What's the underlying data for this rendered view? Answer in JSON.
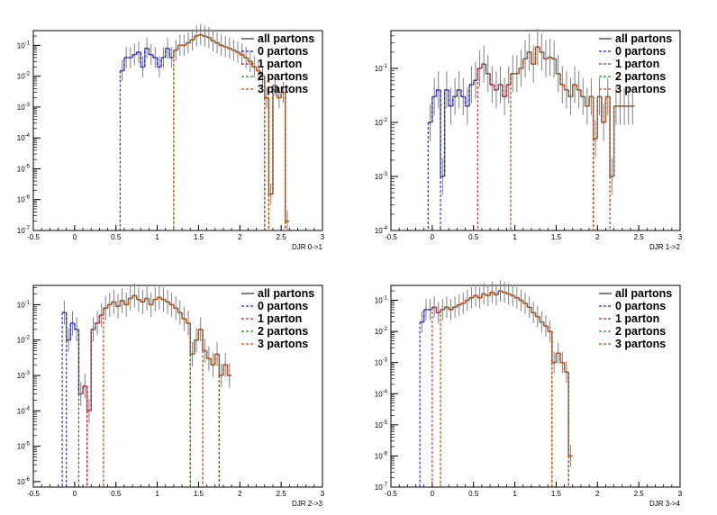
{
  "figure": {
    "background": "#ffffff",
    "frame_color": "#000000",
    "legend_entries": [
      "all partons",
      "0 partons",
      "1 parton",
      "2 partons",
      "3 partons"
    ]
  },
  "chart_data": [
    {
      "type": "line",
      "log_y": true,
      "xlabel": "DJR 0->1",
      "xlim": [
        -0.5,
        3.0
      ],
      "ylim": [
        1e-07,
        0.3
      ],
      "x_ticks": [
        "-0.5",
        "0",
        "0.5",
        "1",
        "1.5",
        "2",
        "2.5",
        "3"
      ],
      "x_tick_values": [
        -0.5,
        0,
        0.5,
        1,
        1.5,
        2,
        2.5,
        3
      ],
      "y_ticks": [
        "10^-7",
        "10^-6",
        "10^-5",
        "10^-4",
        "10^-3",
        "10^-2",
        "10^-1"
      ],
      "y_tick_values": [
        1e-07,
        1e-06,
        1e-05,
        0.0001,
        0.001,
        0.01,
        0.1
      ],
      "legend_position": "top-right",
      "bins": {
        "start": 0.55,
        "width": 0.05,
        "values": [
          0.015,
          0.04,
          0.04,
          0.05,
          0.06,
          0.02,
          0.08,
          0.05,
          0.04,
          0.02,
          0.04,
          0.08,
          0.04,
          0.07,
          0.1,
          0.1,
          0.12,
          0.15,
          0.2,
          0.22,
          0.2,
          0.18,
          0.14,
          0.12,
          0.1,
          0.09,
          0.08,
          0.07,
          0.06,
          0.05,
          0.04,
          0.03,
          0.02,
          0.015,
          0.01,
          0.002,
          1.5e-06,
          0.005,
          0.002,
          0.003,
          2e-07
        ]
      },
      "series": [
        {
          "name": "all partons",
          "color": "#808080",
          "dash": "solid",
          "start_index": 0,
          "end_index": 40
        },
        {
          "name": "0 partons",
          "color": "#1a1aff",
          "dash": "dashed",
          "start_index": 0,
          "end_index": 12
        },
        {
          "name": "1 parton",
          "color": "#cc2222",
          "dash": "dashed",
          "start_index": 13,
          "end_index": 40
        },
        {
          "name": "2 partons",
          "color": "#228822",
          "dash": "dashed",
          "start_index": 13,
          "end_index": 40
        },
        {
          "name": "3 partons",
          "color": "#cc4400",
          "dash": "dashed",
          "start_index": 13,
          "end_index": 40
        }
      ]
    },
    {
      "type": "line",
      "log_y": true,
      "xlabel": "DJR 1->2",
      "xlim": [
        -0.5,
        3.0
      ],
      "ylim": [
        0.0001,
        0.5
      ],
      "x_ticks": [
        "-0.5",
        "0",
        "0.5",
        "1",
        "1.5",
        "2",
        "2.5",
        "3"
      ],
      "x_tick_values": [
        -0.5,
        0,
        0.5,
        1,
        1.5,
        2,
        2.5,
        3
      ],
      "y_ticks": [
        "10^-4",
        "10^-3",
        "10^-2",
        "10^-1"
      ],
      "y_tick_values": [
        0.0001,
        0.001,
        0.01,
        0.1
      ],
      "legend_position": "top-right",
      "bins": {
        "start": -0.05,
        "width": 0.05,
        "values": [
          0.01,
          0.03,
          0.04,
          0.001,
          0.04,
          0.02,
          0.03,
          0.04,
          0.03,
          0.02,
          0.05,
          0.06,
          0.1,
          0.12,
          0.08,
          0.05,
          0.04,
          0.05,
          0.03,
          0.05,
          0.08,
          0.08,
          0.1,
          0.15,
          0.2,
          0.12,
          0.25,
          0.2,
          0.15,
          0.16,
          0.15,
          0.08,
          0.05,
          0.04,
          0.03,
          0.05,
          0.04,
          0.03,
          0.02,
          0.03,
          0.005,
          0.03,
          0.01,
          0.03,
          0.001,
          0.02,
          0.02,
          0.02,
          0.02,
          0.02
        ]
      },
      "series": [
        {
          "name": "all partons",
          "color": "#808080",
          "dash": "solid",
          "start_index": 0,
          "end_index": 49
        },
        {
          "name": "0 partons",
          "color": "#1a1aff",
          "dash": "dashed",
          "start_index": 0,
          "end_index": 20
        },
        {
          "name": "1 parton",
          "color": "#cc2222",
          "dash": "dashed",
          "start_index": 12,
          "end_index": 49
        },
        {
          "name": "2 partons",
          "color": "#228822",
          "dash": "dashed",
          "start_index": 20,
          "end_index": 49
        },
        {
          "name": "3 partons",
          "color": "#cc4400",
          "dash": "dashed",
          "start_index": 20,
          "end_index": 49
        }
      ]
    },
    {
      "type": "line",
      "log_y": true,
      "xlabel": "DJR 2->3",
      "xlim": [
        -0.5,
        3.0
      ],
      "ylim": [
        7e-07,
        0.35
      ],
      "x_ticks": [
        "-0.5",
        "0",
        "0.5",
        "1",
        "1.5",
        "2",
        "2.5",
        "3"
      ],
      "x_tick_values": [
        -0.5,
        0,
        0.5,
        1,
        1.5,
        2,
        2.5,
        3
      ],
      "y_ticks": [
        "10^-6",
        "10^-5",
        "10^-4",
        "10^-3",
        "10^-2",
        "10^-1"
      ],
      "y_tick_values": [
        1e-06,
        1e-05,
        0.0001,
        0.001,
        0.01,
        0.1
      ],
      "legend_position": "top-right",
      "bins": {
        "start": -0.15,
        "width": 0.05,
        "values": [
          0.06,
          0.01,
          0.03,
          0.02,
          0.0003,
          0.0005,
          0.0001,
          0.02,
          0.03,
          0.05,
          0.08,
          0.1,
          0.12,
          0.09,
          0.13,
          0.1,
          0.15,
          0.18,
          0.14,
          0.12,
          0.15,
          0.1,
          0.14,
          0.16,
          0.14,
          0.12,
          0.1,
          0.08,
          0.06,
          0.04,
          0.03,
          0.004,
          0.01,
          0.02,
          0.005,
          0.003,
          0.002,
          0.004,
          0.001,
          0.002,
          0.001
        ]
      },
      "series": [
        {
          "name": "all partons",
          "color": "#808080",
          "dash": "solid",
          "start_index": 0,
          "end_index": 40
        },
        {
          "name": "0 partons",
          "color": "#1a1aff",
          "dash": "dashed",
          "start_index": 0,
          "end_index": 16
        },
        {
          "name": "1 parton",
          "color": "#cc2222",
          "dash": "dashed",
          "start_index": 4,
          "end_index": 40
        },
        {
          "name": "2 partons",
          "color": "#228822",
          "dash": "dashed",
          "start_index": 10,
          "end_index": 40
        },
        {
          "name": "3 partons",
          "color": "#cc4400",
          "dash": "dashed",
          "start_index": 10,
          "end_index": 40
        }
      ]
    },
    {
      "type": "line",
      "log_y": true,
      "xlabel": "DJR 3->4",
      "xlim": [
        -0.5,
        3.0
      ],
      "ylim": [
        1e-07,
        0.3
      ],
      "x_ticks": [
        "-0.5",
        "0",
        "0.5",
        "1",
        "1.5",
        "2",
        "2.5",
        "3"
      ],
      "x_tick_values": [
        -0.5,
        0,
        0.5,
        1,
        1.5,
        2,
        2.5,
        3
      ],
      "y_ticks": [
        "10^-7",
        "10^-6",
        "10^-5",
        "10^-4",
        "10^-3",
        "10^-2",
        "10^-1"
      ],
      "y_tick_values": [
        1e-07,
        1e-06,
        1e-05,
        0.0001,
        0.001,
        0.01,
        0.1
      ],
      "legend_position": "top-right",
      "bins": {
        "start": -0.15,
        "width": 0.05,
        "values": [
          0.02,
          0.05,
          0.05,
          0.06,
          0.04,
          0.05,
          0.06,
          0.05,
          0.06,
          0.07,
          0.08,
          0.1,
          0.12,
          0.14,
          0.12,
          0.16,
          0.14,
          0.18,
          0.15,
          0.2,
          0.18,
          0.16,
          0.14,
          0.12,
          0.1,
          0.08,
          0.06,
          0.04,
          0.03,
          0.02,
          0.015,
          0.01,
          0.001,
          0.002,
          0.001,
          0.0005,
          1e-06
        ]
      },
      "series": [
        {
          "name": "all partons",
          "color": "#808080",
          "dash": "solid",
          "start_index": 0,
          "end_index": 36
        },
        {
          "name": "0 partons",
          "color": "#1a1aff",
          "dash": "dashed",
          "start_index": 0,
          "end_index": 18
        },
        {
          "name": "1 parton",
          "color": "#cc2222",
          "dash": "dashed",
          "start_index": 3,
          "end_index": 36
        },
        {
          "name": "2 partons",
          "color": "#228822",
          "dash": "dashed",
          "start_index": 5,
          "end_index": 36
        },
        {
          "name": "3 partons",
          "color": "#cc4400",
          "dash": "dashed",
          "start_index": 5,
          "end_index": 36
        }
      ]
    }
  ]
}
